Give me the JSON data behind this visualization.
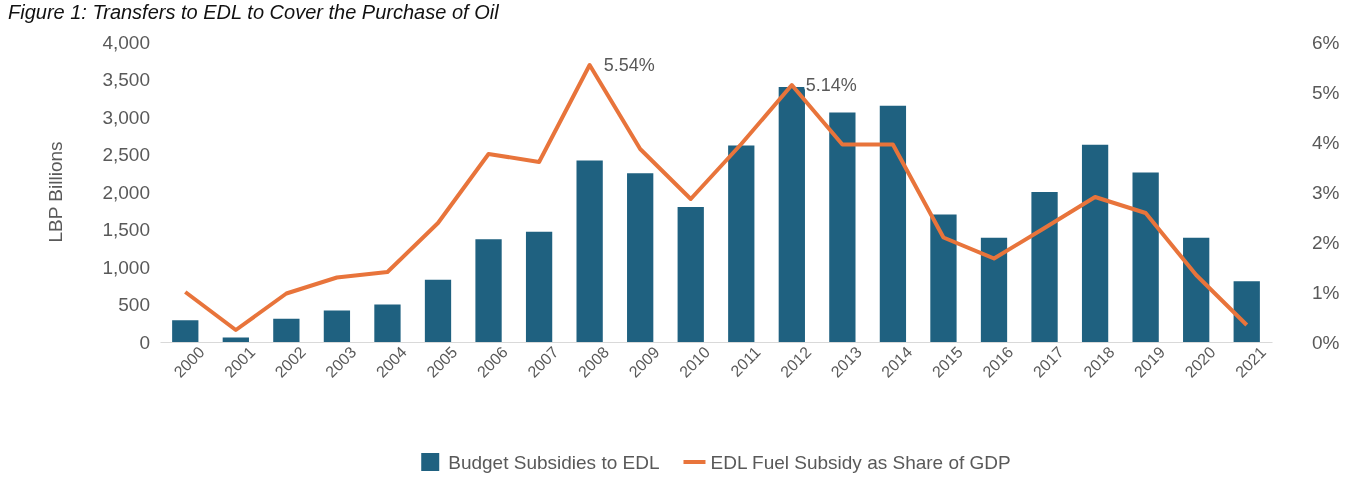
{
  "chart_data": {
    "type": "bar",
    "title": "Figure 1: Transfers to EDL to Cover the Purchase of Oil",
    "ylabel": "LBP Billions",
    "categories": [
      "2000",
      "2001",
      "2002",
      "2003",
      "2004",
      "2005",
      "2006",
      "2007",
      "2008",
      "2009",
      "2010",
      "2011",
      "2012",
      "2013",
      "2014",
      "2015",
      "2016",
      "2017",
      "2018",
      "2019",
      "2020",
      "2021"
    ],
    "series": [
      {
        "name": "Budget Subsidies to EDL",
        "color": "#1f6180",
        "values": [
          290,
          60,
          310,
          420,
          500,
          830,
          1370,
          1470,
          2420,
          2250,
          1800,
          2620,
          3400,
          3060,
          3150,
          1700,
          1390,
          2000,
          2630,
          2260,
          1390,
          810
        ]
      },
      {
        "name": "EDL Fuel Subsidy as Share of GDP",
        "type": "line",
        "axis": "y2",
        "color": "#e8743b",
        "values": [
          1.0,
          0.24,
          0.97,
          1.29,
          1.4,
          2.38,
          3.76,
          3.6,
          5.54,
          3.86,
          2.86,
          3.96,
          5.14,
          3.95,
          3.95,
          2.09,
          1.67,
          2.28,
          2.9,
          2.58,
          1.34,
          0.34
        ],
        "value_labels": [
          null,
          null,
          null,
          null,
          null,
          null,
          null,
          null,
          "5.54%",
          null,
          null,
          null,
          "5.14%",
          null,
          null,
          null,
          null,
          null,
          null,
          null,
          null,
          null
        ]
      }
    ],
    "ylim": [
      0,
      4000
    ],
    "yticks": [
      0,
      {
        "value": 500,
        "label": "500"
      },
      {
        "value": 1000,
        "label": "1,000"
      },
      {
        "value": 1500,
        "label": "1,500"
      },
      {
        "value": 2000,
        "label": "2,000"
      },
      {
        "value": 2500,
        "label": "2,500"
      },
      {
        "value": 3000,
        "label": "3,000"
      },
      {
        "value": 3500,
        "label": "3,500"
      },
      {
        "value": 4000,
        "label": "4,000"
      }
    ],
    "y2lim": [
      0,
      6
    ],
    "y2ticks": [
      {
        "value": 0,
        "label": "0%"
      },
      {
        "value": 1,
        "label": "1%"
      },
      {
        "value": 2,
        "label": "2%"
      },
      {
        "value": 3,
        "label": "3%"
      },
      {
        "value": 4,
        "label": "4%"
      },
      {
        "value": 5,
        "label": "5%"
      },
      {
        "value": 6,
        "label": "6%"
      }
    ],
    "grid": false,
    "legend": "bottom",
    "marker": "none",
    "line_style": "solid"
  }
}
